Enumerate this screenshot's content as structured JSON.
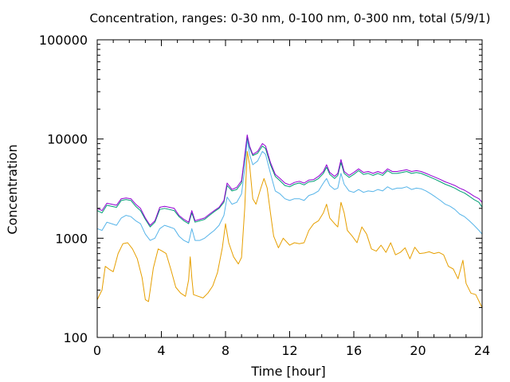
{
  "chart_data": {
    "type": "line",
    "title": "Concentration, ranges: 0-30 nm, 0-100 nm, 0-300 nm, total (5/9/1)",
    "xlabel": "Time [hour]",
    "ylabel": "Concentration",
    "xlim": [
      0,
      24
    ],
    "ylim": [
      100,
      100000
    ],
    "y_scale": "log",
    "grid": false,
    "legend": "none",
    "x_ticks": [
      0,
      4,
      8,
      12,
      16,
      20,
      24
    ],
    "x_tick_labels": [
      "0",
      "4",
      "8",
      "12",
      "16",
      "20",
      "24"
    ],
    "y_ticks": [
      100,
      1000,
      10000,
      100000
    ],
    "y_tick_labels": [
      "100",
      "1000",
      "10000",
      "100000"
    ],
    "series": [
      {
        "color": "#e69f00",
        "x": [
          0,
          0.3,
          0.5,
          0.8,
          1.0,
          1.3,
          1.6,
          1.9,
          2.2,
          2.5,
          2.8,
          3.0,
          3.2,
          3.5,
          3.8,
          4.0,
          4.3,
          4.6,
          4.9,
          5.2,
          5.5,
          5.7,
          5.8,
          5.9,
          6.0,
          6.3,
          6.6,
          6.9,
          7.2,
          7.5,
          7.8,
          8.0,
          8.2,
          8.5,
          8.8,
          9.0,
          9.2,
          9.35,
          9.5,
          9.7,
          9.9,
          10.2,
          10.4,
          10.6,
          10.8,
          11.0,
          11.3,
          11.6,
          12.0,
          12.3,
          12.6,
          12.9,
          13.2,
          13.5,
          13.8,
          14.1,
          14.3,
          14.5,
          14.8,
          15.0,
          15.2,
          15.4,
          15.6,
          15.9,
          16.2,
          16.5,
          16.8,
          17.1,
          17.4,
          17.7,
          18.0,
          18.3,
          18.6,
          18.9,
          19.2,
          19.5,
          19.8,
          20.1,
          20.4,
          20.7,
          21.0,
          21.3,
          21.6,
          21.9,
          22.2,
          22.5,
          22.8,
          23.0,
          23.3,
          23.6,
          24.0
        ],
        "y": [
          240,
          300,
          520,
          480,
          460,
          700,
          880,
          900,
          780,
          620,
          400,
          240,
          230,
          500,
          780,
          750,
          700,
          480,
          320,
          280,
          260,
          380,
          650,
          400,
          270,
          260,
          250,
          280,
          330,
          450,
          800,
          1400,
          900,
          650,
          550,
          640,
          2000,
          7500,
          5500,
          2500,
          2200,
          3200,
          4000,
          3200,
          1800,
          1050,
          800,
          1000,
          850,
          900,
          880,
          900,
          1200,
          1400,
          1500,
          1800,
          2200,
          1600,
          1400,
          1300,
          2300,
          1800,
          1200,
          1050,
          900,
          1300,
          1100,
          780,
          740,
          850,
          720,
          900,
          680,
          720,
          800,
          620,
          810,
          700,
          710,
          730,
          700,
          720,
          680,
          520,
          490,
          390,
          600,
          350,
          280,
          270,
          200
        ]
      },
      {
        "color": "#56b4e9",
        "x": [
          0,
          0.3,
          0.6,
          0.9,
          1.2,
          1.5,
          1.8,
          2.1,
          2.4,
          2.7,
          3.0,
          3.3,
          3.6,
          3.9,
          4.2,
          4.5,
          4.8,
          5.1,
          5.4,
          5.7,
          5.9,
          6.1,
          6.4,
          6.7,
          7.0,
          7.3,
          7.6,
          7.9,
          8.1,
          8.4,
          8.7,
          9.0,
          9.2,
          9.35,
          9.5,
          9.7,
          10.0,
          10.3,
          10.5,
          10.8,
          11.1,
          11.4,
          11.7,
          12.0,
          12.3,
          12.6,
          12.9,
          13.2,
          13.5,
          13.8,
          14.1,
          14.3,
          14.5,
          14.8,
          15.0,
          15.2,
          15.4,
          15.7,
          16.0,
          16.3,
          16.6,
          16.9,
          17.2,
          17.5,
          17.8,
          18.1,
          18.4,
          18.7,
          19.0,
          19.3,
          19.6,
          19.9,
          20.2,
          20.5,
          20.8,
          21.1,
          21.4,
          21.7,
          22.0,
          22.3,
          22.6,
          22.9,
          23.2,
          23.5,
          23.8,
          24.0
        ],
        "y": [
          1250,
          1200,
          1450,
          1400,
          1350,
          1600,
          1700,
          1650,
          1500,
          1400,
          1100,
          950,
          1000,
          1250,
          1350,
          1300,
          1250,
          1050,
          950,
          900,
          1250,
          950,
          950,
          1000,
          1100,
          1200,
          1350,
          1700,
          2600,
          2200,
          2300,
          2800,
          5000,
          10000,
          7000,
          5500,
          6000,
          7500,
          7000,
          4500,
          3000,
          2800,
          2500,
          2400,
          2500,
          2500,
          2400,
          2700,
          2800,
          3000,
          3600,
          4000,
          3400,
          3100,
          3200,
          4500,
          3500,
          3000,
          2900,
          3100,
          2900,
          3000,
          2950,
          3100,
          3000,
          3300,
          3100,
          3200,
          3200,
          3300,
          3100,
          3200,
          3150,
          3000,
          2800,
          2600,
          2400,
          2200,
          2100,
          1950,
          1750,
          1650,
          1500,
          1350,
          1200,
          1100
        ]
      },
      {
        "color": "#009e73",
        "x": [
          0,
          0.3,
          0.6,
          0.9,
          1.2,
          1.5,
          1.8,
          2.1,
          2.4,
          2.7,
          3.0,
          3.3,
          3.6,
          3.9,
          4.2,
          4.5,
          4.8,
          5.1,
          5.4,
          5.7,
          5.9,
          6.1,
          6.4,
          6.7,
          7.0,
          7.3,
          7.6,
          7.9,
          8.1,
          8.4,
          8.7,
          9.0,
          9.2,
          9.35,
          9.5,
          9.7,
          10.0,
          10.3,
          10.5,
          10.8,
          11.1,
          11.4,
          11.7,
          12.0,
          12.3,
          12.6,
          12.9,
          13.2,
          13.5,
          13.8,
          14.1,
          14.3,
          14.5,
          14.8,
          15.0,
          15.2,
          15.4,
          15.7,
          16.0,
          16.3,
          16.6,
          16.9,
          17.2,
          17.5,
          17.8,
          18.1,
          18.4,
          18.7,
          19.0,
          19.3,
          19.6,
          19.9,
          20.2,
          20.5,
          20.8,
          21.1,
          21.4,
          21.7,
          22.0,
          22.3,
          22.6,
          22.9,
          23.2,
          23.5,
          23.8,
          24.0
        ],
        "y": [
          1900,
          1800,
          2150,
          2100,
          2050,
          2400,
          2450,
          2400,
          2100,
          1900,
          1550,
          1300,
          1450,
          1950,
          2000,
          1950,
          1900,
          1650,
          1500,
          1400,
          1800,
          1450,
          1500,
          1550,
          1700,
          1850,
          2000,
          2300,
          3400,
          3000,
          3100,
          3600,
          6500,
          10500,
          8200,
          6800,
          7200,
          8500,
          8000,
          5500,
          4200,
          3800,
          3400,
          3300,
          3500,
          3600,
          3450,
          3700,
          3750,
          4000,
          4500,
          5200,
          4400,
          4000,
          4300,
          5800,
          4500,
          4100,
          4400,
          4800,
          4400,
          4500,
          4300,
          4500,
          4300,
          4800,
          4500,
          4500,
          4600,
          4700,
          4500,
          4600,
          4500,
          4300,
          4100,
          3900,
          3700,
          3500,
          3350,
          3200,
          3000,
          2850,
          2650,
          2450,
          2300,
          2050
        ]
      },
      {
        "color": "#9400d3",
        "x": [
          0,
          0.3,
          0.6,
          0.9,
          1.2,
          1.5,
          1.8,
          2.1,
          2.4,
          2.7,
          3.0,
          3.3,
          3.6,
          3.9,
          4.2,
          4.5,
          4.8,
          5.1,
          5.4,
          5.7,
          5.9,
          6.1,
          6.4,
          6.7,
          7.0,
          7.3,
          7.6,
          7.9,
          8.1,
          8.4,
          8.7,
          9.0,
          9.2,
          9.35,
          9.5,
          9.7,
          10.0,
          10.3,
          10.5,
          10.8,
          11.1,
          11.4,
          11.7,
          12.0,
          12.3,
          12.6,
          12.9,
          13.2,
          13.5,
          13.8,
          14.1,
          14.3,
          14.5,
          14.8,
          15.0,
          15.2,
          15.4,
          15.7,
          16.0,
          16.3,
          16.6,
          16.9,
          17.2,
          17.5,
          17.8,
          18.1,
          18.4,
          18.7,
          19.0,
          19.3,
          19.6,
          19.9,
          20.2,
          20.5,
          20.8,
          21.1,
          21.4,
          21.7,
          22.0,
          22.3,
          22.6,
          22.9,
          23.2,
          23.5,
          23.8,
          24.0
        ],
        "y": [
          2000,
          1900,
          2250,
          2200,
          2150,
          2500,
          2550,
          2500,
          2200,
          2000,
          1600,
          1350,
          1500,
          2050,
          2100,
          2050,
          2000,
          1700,
          1550,
          1450,
          1900,
          1500,
          1550,
          1600,
          1750,
          1900,
          2050,
          2400,
          3600,
          3100,
          3250,
          3800,
          6800,
          11000,
          8500,
          7000,
          7500,
          9000,
          8500,
          5800,
          4400,
          4000,
          3600,
          3450,
          3650,
          3750,
          3600,
          3850,
          3900,
          4200,
          4700,
          5500,
          4600,
          4200,
          4500,
          6200,
          4700,
          4300,
          4600,
          5000,
          4600,
          4700,
          4500,
          4700,
          4500,
          5000,
          4700,
          4700,
          4800,
          4900,
          4700,
          4800,
          4700,
          4500,
          4300,
          4100,
          3900,
          3700,
          3550,
          3400,
          3200,
          3050,
          2850,
          2650,
          2500,
          2300
        ]
      }
    ]
  }
}
